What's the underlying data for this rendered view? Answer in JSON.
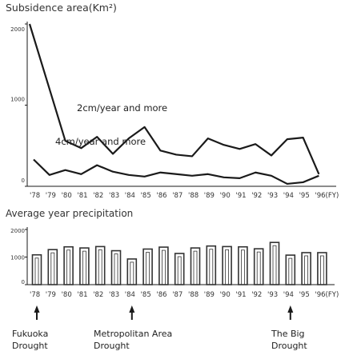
{
  "chart_data": [
    {
      "type": "line",
      "title": "Subsidence area(Km²)",
      "ylim": [
        0,
        2000
      ],
      "yticks": [
        "2000",
        "1000",
        "0"
      ],
      "categories": [
        "'78",
        "'79",
        "'80",
        "'81",
        "'82",
        "'83",
        "'84",
        "'85",
        "'86",
        "'87",
        "'88",
        "'89",
        "'90",
        "'91",
        "'92",
        "'93",
        "'94",
        "'95",
        "'96(FY)"
      ],
      "series": [
        {
          "name": "2cm/year and more",
          "values": [
            2000,
            1200,
            560,
            470,
            610,
            400,
            590,
            730,
            440,
            390,
            370,
            590,
            510,
            460,
            520,
            380,
            580,
            600,
            150
          ]
        },
        {
          "name": "4cm/year and more",
          "values": [
            330,
            140,
            200,
            150,
            260,
            180,
            140,
            120,
            170,
            150,
            130,
            150,
            110,
            100,
            170,
            130,
            30,
            50,
            130
          ]
        }
      ]
    },
    {
      "type": "bar",
      "title": "Average year precipitation",
      "ylim": [
        0,
        2000
      ],
      "yticks": [
        "2000",
        "1000",
        "0"
      ],
      "categories": [
        "'78",
        "'79",
        "'80",
        "'81",
        "'82",
        "'83",
        "'84",
        "'85",
        "'86",
        "'87",
        "'88",
        "'89",
        "'90",
        "'91",
        "'92",
        "'93",
        "'94",
        "'95",
        "'96(FY)"
      ],
      "values": [
        1080,
        1270,
        1370,
        1330,
        1380,
        1230,
        930,
        1290,
        1360,
        1130,
        1330,
        1400,
        1380,
        1370,
        1300,
        1530,
        1070,
        1160,
        1160
      ]
    }
  ],
  "annotations": [
    {
      "label": "Fukuoka\nDrought",
      "year": "'78"
    },
    {
      "label": "Metropolitan Area\nDrought",
      "year": "'84"
    },
    {
      "label": "The Big\nDrought",
      "year": "'94"
    }
  ],
  "colors": {
    "line": "#1a1a1a",
    "bar": "#333333",
    "text": "#222222"
  }
}
